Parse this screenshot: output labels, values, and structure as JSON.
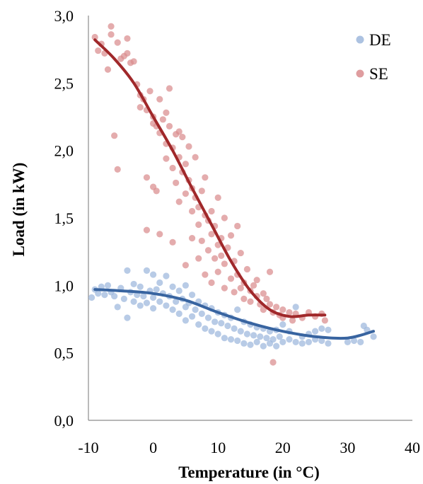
{
  "chart_data": {
    "type": "scatter",
    "title": "",
    "xlabel": "Temperature (in °C)",
    "ylabel": "Load (in kW)",
    "xlim": [
      -10,
      40
    ],
    "ylim": [
      0,
      3
    ],
    "x_ticks": [
      "-10",
      "0",
      "10",
      "20",
      "30",
      "40"
    ],
    "y_ticks": [
      "0,0",
      "0,5",
      "1,0",
      "1,5",
      "2,0",
      "2,5",
      "3,0"
    ],
    "grid": false,
    "legend_position": "top-right",
    "series": [
      {
        "name": "DE",
        "color": "#9db7dc",
        "trend_color": "#3864a0",
        "trend": [
          [
            -9,
            0.97
          ],
          [
            -5,
            0.96
          ],
          [
            0,
            0.94
          ],
          [
            5,
            0.89
          ],
          [
            10,
            0.8
          ],
          [
            15,
            0.72
          ],
          [
            20,
            0.66
          ],
          [
            25,
            0.62
          ],
          [
            30,
            0.61
          ],
          [
            34,
            0.66
          ]
        ],
        "points": [
          [
            -9.5,
            0.91
          ],
          [
            -9,
            0.97
          ],
          [
            -8.5,
            0.94
          ],
          [
            -8,
            0.99
          ],
          [
            -7.5,
            0.93
          ],
          [
            -7,
            1.0
          ],
          [
            -6.5,
            0.95
          ],
          [
            -6,
            0.92
          ],
          [
            -5.5,
            0.84
          ],
          [
            -5,
            0.98
          ],
          [
            -4.5,
            0.9
          ],
          [
            -4,
            1.11
          ],
          [
            -4,
            0.76
          ],
          [
            -3.5,
            0.95
          ],
          [
            -3,
            1.01
          ],
          [
            -3,
            0.88
          ],
          [
            -2.5,
            0.93
          ],
          [
            -2,
            0.99
          ],
          [
            -2,
            0.85
          ],
          [
            -1.5,
            0.92
          ],
          [
            -1,
            1.11
          ],
          [
            -1,
            0.87
          ],
          [
            -0.5,
            0.96
          ],
          [
            0,
            1.08
          ],
          [
            0,
            0.91
          ],
          [
            0,
            0.83
          ],
          [
            0.5,
            0.97
          ],
          [
            1,
            1.02
          ],
          [
            1,
            0.88
          ],
          [
            1.5,
            0.94
          ],
          [
            2,
            1.07
          ],
          [
            2,
            0.85
          ],
          [
            2.5,
            0.92
          ],
          [
            3,
            0.99
          ],
          [
            3,
            0.82
          ],
          [
            3.5,
            0.88
          ],
          [
            4,
            0.96
          ],
          [
            4,
            0.79
          ],
          [
            4.5,
            0.9
          ],
          [
            5,
            1.0
          ],
          [
            5,
            0.84
          ],
          [
            5,
            0.74
          ],
          [
            5.5,
            0.87
          ],
          [
            6,
            0.93
          ],
          [
            6,
            0.77
          ],
          [
            6.5,
            0.82
          ],
          [
            7,
            0.88
          ],
          [
            7,
            0.71
          ],
          [
            7.5,
            0.79
          ],
          [
            8,
            0.85
          ],
          [
            8,
            0.68
          ],
          [
            8.5,
            0.76
          ],
          [
            9,
            0.83
          ],
          [
            9,
            0.66
          ],
          [
            9.5,
            0.73
          ],
          [
            10,
            0.8
          ],
          [
            10,
            0.64
          ],
          [
            10.5,
            0.72
          ],
          [
            11,
            0.78
          ],
          [
            11,
            0.61
          ],
          [
            11.5,
            0.7
          ],
          [
            12,
            0.76
          ],
          [
            12,
            0.6
          ],
          [
            12.5,
            0.68
          ],
          [
            13,
            0.82
          ],
          [
            13,
            0.59
          ],
          [
            13.5,
            0.66
          ],
          [
            14,
            0.73
          ],
          [
            14,
            0.57
          ],
          [
            14.5,
            0.64
          ],
          [
            15,
            0.71
          ],
          [
            15,
            0.56
          ],
          [
            15.5,
            0.63
          ],
          [
            16,
            0.69
          ],
          [
            16,
            0.58
          ],
          [
            16.5,
            0.62
          ],
          [
            17,
            0.68
          ],
          [
            17,
            0.55
          ],
          [
            17.5,
            0.61
          ],
          [
            18,
            0.66
          ],
          [
            18,
            0.57
          ],
          [
            18.5,
            0.6
          ],
          [
            19,
            0.67
          ],
          [
            19,
            0.55
          ],
          [
            19.5,
            0.62
          ],
          [
            20,
            0.71
          ],
          [
            20,
            0.58
          ],
          [
            21,
            0.6
          ],
          [
            21,
            0.66
          ],
          [
            22,
            0.58
          ],
          [
            22,
            0.84
          ],
          [
            23,
            0.62
          ],
          [
            23,
            0.57
          ],
          [
            24,
            0.64
          ],
          [
            24,
            0.58
          ],
          [
            25,
            0.6
          ],
          [
            25,
            0.66
          ],
          [
            26,
            0.59
          ],
          [
            26,
            0.68
          ],
          [
            27,
            0.57
          ],
          [
            27,
            0.67
          ],
          [
            30,
            0.58
          ],
          [
            31,
            0.59
          ],
          [
            32,
            0.58
          ],
          [
            32.5,
            0.7
          ],
          [
            33,
            0.67
          ],
          [
            34,
            0.62
          ]
        ]
      },
      {
        "name": "SE",
        "color": "#d98c8e",
        "trend_color": "#a0282a",
        "trend": [
          [
            -9,
            2.82
          ],
          [
            -6,
            2.68
          ],
          [
            -3,
            2.5
          ],
          [
            0,
            2.25
          ],
          [
            3,
            2.0
          ],
          [
            6,
            1.72
          ],
          [
            9,
            1.45
          ],
          [
            12,
            1.18
          ],
          [
            15,
            0.96
          ],
          [
            18,
            0.82
          ],
          [
            21,
            0.77
          ],
          [
            24,
            0.78
          ],
          [
            26.5,
            0.78
          ]
        ],
        "points": [
          [
            -9,
            2.84
          ],
          [
            -8.5,
            2.74
          ],
          [
            -8,
            2.79
          ],
          [
            -7.5,
            2.72
          ],
          [
            -7,
            2.6
          ],
          [
            -6.5,
            2.92
          ],
          [
            -6.5,
            2.86
          ],
          [
            -6,
            2.11
          ],
          [
            -5.5,
            2.8
          ],
          [
            -5.5,
            1.86
          ],
          [
            -5,
            2.68
          ],
          [
            -4.5,
            2.7
          ],
          [
            -4,
            2.72
          ],
          [
            -4,
            2.83
          ],
          [
            -3.5,
            2.65
          ],
          [
            -3,
            2.66
          ],
          [
            -2.5,
            2.49
          ],
          [
            -2,
            2.41
          ],
          [
            -2,
            2.32
          ],
          [
            -1.5,
            2.38
          ],
          [
            -1,
            1.8
          ],
          [
            -1,
            2.3
          ],
          [
            -1,
            1.41
          ],
          [
            -0.5,
            2.44
          ],
          [
            0,
            2.25
          ],
          [
            0,
            2.2
          ],
          [
            0,
            1.73
          ],
          [
            0.5,
            2.18
          ],
          [
            0.5,
            1.7
          ],
          [
            1,
            2.13
          ],
          [
            1,
            2.38
          ],
          [
            1,
            1.38
          ],
          [
            1.5,
            2.23
          ],
          [
            2,
            2.05
          ],
          [
            2,
            2.28
          ],
          [
            2,
            1.94
          ],
          [
            2.5,
            2.46
          ],
          [
            2.5,
            2.18
          ],
          [
            3,
            2.02
          ],
          [
            3,
            1.87
          ],
          [
            3,
            1.32
          ],
          [
            3.5,
            2.12
          ],
          [
            3.5,
            1.76
          ],
          [
            4,
            1.95
          ],
          [
            4,
            2.14
          ],
          [
            4,
            1.62
          ],
          [
            4.5,
            1.84
          ],
          [
            4.5,
            2.1
          ],
          [
            5,
            1.9
          ],
          [
            5,
            1.68
          ],
          [
            5,
            1.15
          ],
          [
            5.5,
            1.78
          ],
          [
            5.5,
            2.03
          ],
          [
            6,
            1.72
          ],
          [
            6,
            1.55
          ],
          [
            6,
            1.35
          ],
          [
            6.5,
            1.65
          ],
          [
            6.5,
            1.95
          ],
          [
            7,
            1.58
          ],
          [
            7,
            1.45
          ],
          [
            7,
            1.2
          ],
          [
            7.5,
            1.7
          ],
          [
            7.5,
            1.33
          ],
          [
            8,
            1.52
          ],
          [
            8,
            1.8
          ],
          [
            8,
            1.08
          ],
          [
            8.5,
            1.48
          ],
          [
            8.5,
            1.26
          ],
          [
            9,
            1.55
          ],
          [
            9,
            1.38
          ],
          [
            9,
            1.02
          ],
          [
            9.5,
            1.44
          ],
          [
            9.5,
            1.2
          ],
          [
            10,
            1.65
          ],
          [
            10,
            1.3
          ],
          [
            10,
            1.1
          ],
          [
            10.5,
            1.35
          ],
          [
            10.5,
            1.22
          ],
          [
            11,
            1.5
          ],
          [
            11,
            1.16
          ],
          [
            11,
            0.98
          ],
          [
            11.5,
            1.28
          ],
          [
            12,
            1.37
          ],
          [
            12,
            1.05
          ],
          [
            12.5,
            1.18
          ],
          [
            12.5,
            0.95
          ],
          [
            13,
            1.44
          ],
          [
            13,
            1.08
          ],
          [
            13.5,
            0.98
          ],
          [
            13.5,
            1.24
          ],
          [
            14,
            1.02
          ],
          [
            14,
            0.9
          ],
          [
            14.5,
            1.12
          ],
          [
            15,
            0.96
          ],
          [
            15,
            0.88
          ],
          [
            15.5,
            1.0
          ],
          [
            16,
            0.92
          ],
          [
            16,
            1.04
          ],
          [
            16.5,
            0.86
          ],
          [
            17,
            0.94
          ],
          [
            17,
            0.82
          ],
          [
            17.5,
            0.9
          ],
          [
            18,
            1.1
          ],
          [
            18,
            0.86
          ],
          [
            18.5,
            0.8
          ],
          [
            18.5,
            0.43
          ],
          [
            19,
            0.84
          ],
          [
            19.5,
            0.78
          ],
          [
            20,
            0.82
          ],
          [
            20,
            0.76
          ],
          [
            21,
            0.8
          ],
          [
            21.5,
            0.74
          ],
          [
            22,
            0.79
          ],
          [
            23,
            0.76
          ],
          [
            24,
            0.8
          ],
          [
            25,
            0.77
          ],
          [
            26,
            0.79
          ],
          [
            26.5,
            0.74
          ]
        ]
      }
    ]
  }
}
